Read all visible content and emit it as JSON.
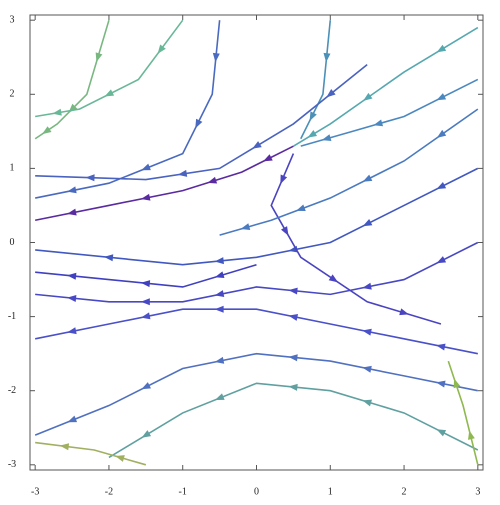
{
  "chart_data": {
    "type": "stream",
    "xlim": [
      -3.07,
      3.07
    ],
    "ylim": [
      -3.07,
      3.07
    ],
    "xticks": [
      -3,
      -2,
      -1,
      0,
      1,
      2,
      3
    ],
    "yticks": [
      -3,
      -2,
      -1,
      0,
      1,
      2,
      3
    ],
    "series": [
      {
        "color": "#5a2aa0",
        "x": [
          0.5,
          -0.2,
          -1,
          -2,
          -3
        ],
        "y": [
          1.3,
          0.95,
          0.7,
          0.5,
          0.3
        ]
      },
      {
        "color": "#56a8b0",
        "x": [
          3,
          2,
          1,
          0.5
        ],
        "y": [
          2.9,
          2.3,
          1.6,
          1.3
        ]
      },
      {
        "color": "#4a6ac0",
        "x": [
          -0.5,
          -0.6,
          -1,
          -2,
          -3
        ],
        "y": [
          3,
          2,
          1.2,
          0.8,
          0.6
        ]
      },
      {
        "color": "#78b880",
        "x": [
          -2,
          -2.3,
          -2.7,
          -3
        ],
        "y": [
          3,
          2,
          1.6,
          1.4
        ]
      },
      {
        "color": "#4040c0",
        "x": [
          0,
          -1,
          -2,
          -3
        ],
        "y": [
          -0.3,
          -0.6,
          -0.5,
          -0.4
        ]
      },
      {
        "color": "#4a50c8",
        "x": [
          3,
          2,
          1,
          0,
          -1,
          -2,
          -3
        ],
        "y": [
          -1.5,
          -1.3,
          -1.1,
          -0.9,
          -0.9,
          -1.1,
          -1.3
        ]
      },
      {
        "color": "#5070c0",
        "x": [
          3,
          2,
          1,
          0,
          -1,
          -2,
          -3
        ],
        "y": [
          -2,
          -1.8,
          -1.6,
          -1.5,
          -1.7,
          -2.2,
          -2.6
        ]
      },
      {
        "color": "#60a0a0",
        "x": [
          3,
          2,
          1,
          0,
          -1,
          -2
        ],
        "y": [
          -2.8,
          -2.3,
          -2,
          -1.9,
          -2.3,
          -2.9
        ]
      },
      {
        "color": "#4a90b8",
        "x": [
          1,
          0.9,
          0.6
        ],
        "y": [
          3,
          2,
          1.4
        ]
      },
      {
        "color": "#4058c0",
        "x": [
          3,
          2,
          1,
          0,
          -1,
          -3
        ],
        "y": [
          1,
          0.5,
          0,
          -0.2,
          -0.3,
          -0.1
        ]
      },
      {
        "color": "#4848c4",
        "x": [
          3,
          2,
          1,
          0,
          -1,
          -2,
          -3
        ],
        "y": [
          0,
          -0.5,
          -0.7,
          -0.6,
          -0.8,
          -0.8,
          -0.7
        ]
      },
      {
        "color": "#4a62c0",
        "x": [
          1.5,
          0.5,
          -0.5,
          -1.5,
          -3
        ],
        "y": [
          2.4,
          1.6,
          1.0,
          0.85,
          0.9
        ]
      },
      {
        "color": "#4c88c0",
        "x": [
          3,
          2,
          1.3,
          0.6
        ],
        "y": [
          2.2,
          1.7,
          1.5,
          1.3
        ]
      },
      {
        "color": "#a0b060",
        "x": [
          -1.5,
          -2.2,
          -3
        ],
        "y": [
          -3,
          -2.8,
          -2.7
        ]
      },
      {
        "color": "#4a44c0",
        "x": [
          0.5,
          0.2,
          0.6,
          1.5,
          2.5
        ],
        "y": [
          1.2,
          0.5,
          -0.2,
          -0.8,
          -1.1
        ]
      },
      {
        "color": "#90b850",
        "x": [
          3,
          2.8,
          2.6
        ],
        "y": [
          -3,
          -2.2,
          -1.6
        ]
      },
      {
        "color": "#68b898",
        "x": [
          -1,
          -1.6,
          -2.4,
          -3
        ],
        "y": [
          3,
          2.2,
          1.8,
          1.7
        ]
      },
      {
        "color": "#4a7ac0",
        "x": [
          3,
          2,
          1,
          0.2,
          -0.5
        ],
        "y": [
          1.8,
          1.1,
          0.6,
          0.3,
          0.1
        ]
      }
    ]
  }
}
